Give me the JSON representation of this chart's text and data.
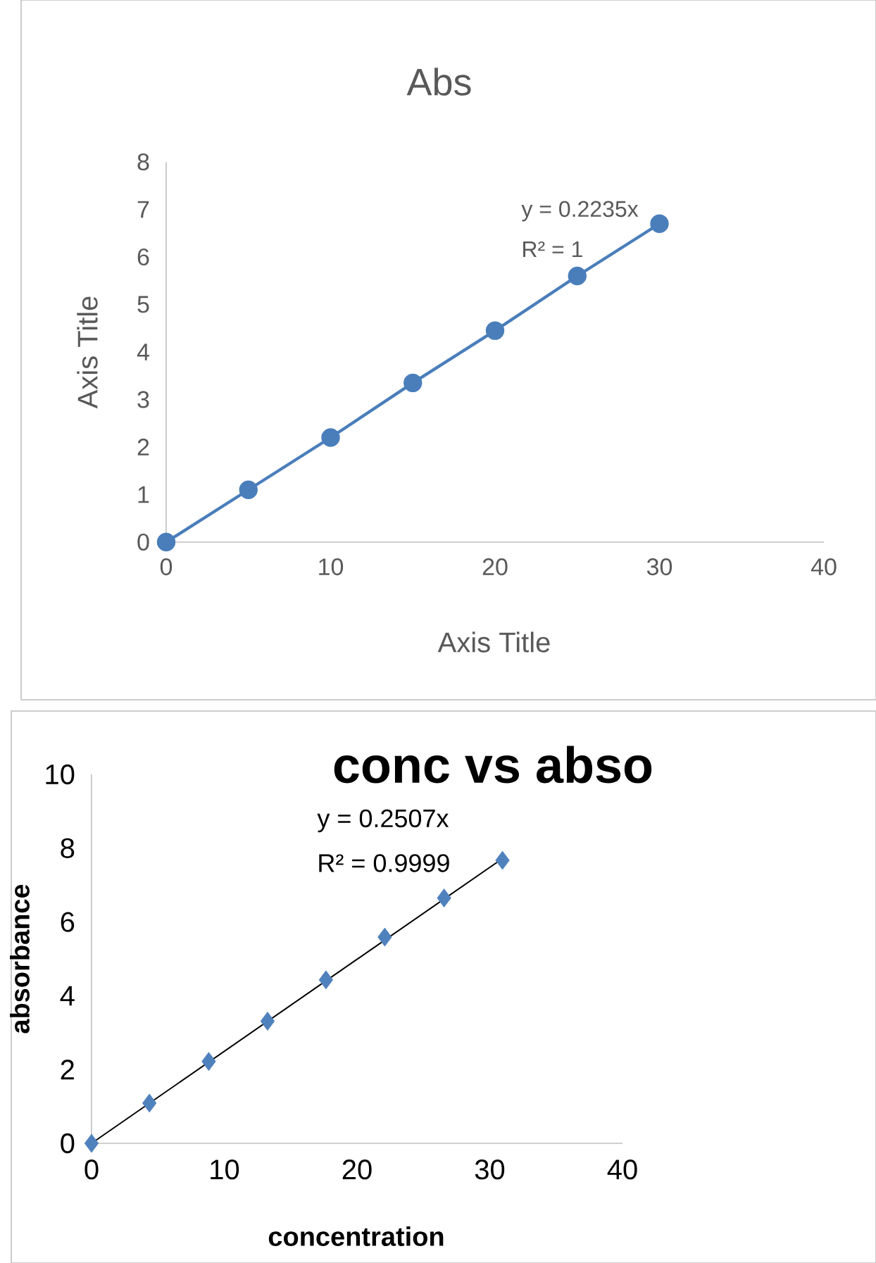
{
  "chart_data": [
    {
      "type": "line",
      "title": "Abs",
      "xlabel": "Axis Title",
      "ylabel": "Axis Title",
      "xlim": [
        0,
        40
      ],
      "ylim": [
        0,
        8
      ],
      "xticks": [
        0,
        10,
        20,
        30,
        40
      ],
      "yticks": [
        0,
        1,
        2,
        3,
        4,
        5,
        6,
        7,
        8
      ],
      "marker": "circle",
      "line_style": "solid",
      "annotations": [
        "y = 0.2235x",
        "R² = 1"
      ],
      "series": [
        {
          "color": "#4a7ebb",
          "x": [
            0,
            5,
            10,
            15,
            20,
            25,
            30
          ],
          "values": [
            0,
            1.1,
            2.2,
            3.35,
            4.45,
            5.6,
            6.7
          ]
        }
      ]
    },
    {
      "type": "scatter",
      "title": "conc vs abso",
      "xlabel": "concentration",
      "ylabel": "absorbance",
      "xlim": [
        0,
        40
      ],
      "ylim": [
        0,
        10
      ],
      "xticks": [
        0,
        10,
        20,
        30,
        40
      ],
      "yticks": [
        0,
        2,
        4,
        6,
        8,
        10
      ],
      "marker": "diamond",
      "annotations": [
        "y = 0.2507x",
        "R² = 0.9999"
      ],
      "series": [
        {
          "color": "#4f81bd",
          "x": [
            0,
            4.36,
            8.83,
            13.26,
            17.66,
            22.09,
            26.56,
            30.96
          ],
          "values": [
            0,
            1.09,
            2.22,
            3.31,
            4.43,
            5.59,
            6.65,
            7.67
          ]
        },
        {
          "type": "line",
          "marker": "none",
          "color": "#000000",
          "x": [
            0,
            30.96
          ],
          "values": [
            0,
            7.72
          ]
        }
      ]
    }
  ]
}
